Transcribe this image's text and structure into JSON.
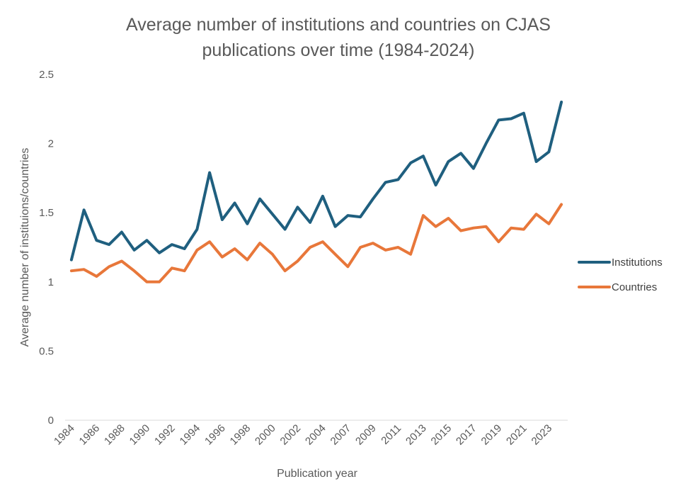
{
  "chart_data": {
    "type": "line",
    "title_line1": "Average number of institutions and countries on CJAS",
    "title_line2": "publications over time (1984-2024)",
    "xlabel": "Publication year",
    "ylabel": "Average number of instituions/countries",
    "ylim": [
      0,
      2.5
    ],
    "yticks": [
      "0",
      "0.5",
      "1",
      "1.5",
      "2",
      "2.5"
    ],
    "grid": false,
    "legend_position": "right",
    "x": [
      "1984",
      "1985",
      "1986",
      "1987",
      "1988",
      "1989",
      "1990",
      "1991",
      "1992",
      "1993",
      "1994",
      "1995",
      "1996",
      "1997",
      "1998",
      "1999",
      "2000",
      "2001",
      "2002",
      "2003",
      "2004",
      "2005",
      "2007",
      "2008",
      "2009",
      "2010",
      "2011",
      "2012",
      "2013",
      "2014",
      "2015",
      "2016",
      "2017",
      "2018",
      "2019",
      "2020",
      "2021",
      "2022",
      "2023",
      "2024"
    ],
    "xtick_labels": [
      "1984",
      "1986",
      "1988",
      "1990",
      "1992",
      "1994",
      "1996",
      "1998",
      "2000",
      "2002",
      "2004",
      "2007",
      "2009",
      "2011",
      "2013",
      "2015",
      "2017",
      "2019",
      "2021",
      "2023"
    ],
    "series": [
      {
        "name": "Institutions",
        "color": "#1f5f7f",
        "values": [
          1.16,
          1.52,
          1.3,
          1.27,
          1.36,
          1.23,
          1.3,
          1.21,
          1.27,
          1.24,
          1.38,
          1.79,
          1.45,
          1.57,
          1.42,
          1.6,
          1.49,
          1.38,
          1.54,
          1.43,
          1.62,
          1.4,
          1.48,
          1.47,
          1.6,
          1.72,
          1.74,
          1.86,
          1.91,
          1.7,
          1.87,
          1.93,
          1.82,
          2.0,
          2.17,
          2.18,
          2.22,
          1.87,
          1.94,
          2.3
        ]
      },
      {
        "name": "Countries",
        "color": "#e8773a",
        "values": [
          1.08,
          1.09,
          1.04,
          1.11,
          1.15,
          1.08,
          1.0,
          1.0,
          1.1,
          1.08,
          1.23,
          1.29,
          1.18,
          1.24,
          1.16,
          1.28,
          1.2,
          1.08,
          1.15,
          1.25,
          1.29,
          1.2,
          1.11,
          1.25,
          1.28,
          1.23,
          1.25,
          1.2,
          1.48,
          1.4,
          1.46,
          1.37,
          1.39,
          1.4,
          1.29,
          1.39,
          1.38,
          1.49,
          1.42,
          1.56
        ]
      }
    ]
  }
}
